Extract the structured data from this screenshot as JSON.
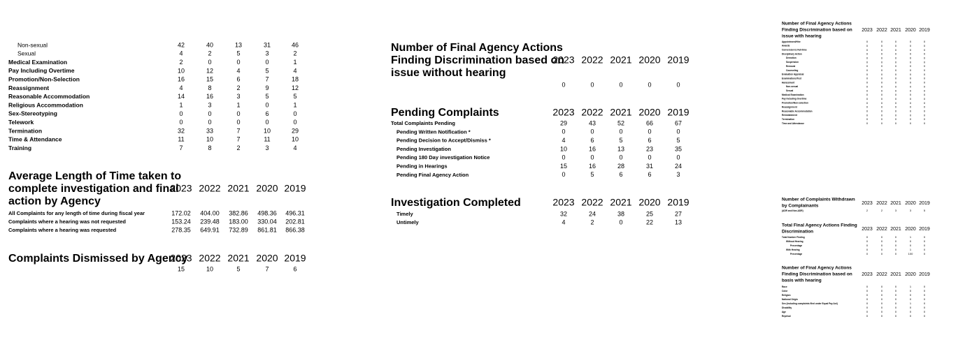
{
  "sections": [
    {
      "rows": [
        {
          "label": "Non-sexual",
          "values": [
            42,
            40,
            13,
            31,
            46
          ]
        },
        {
          "label": "Sexual",
          "values": [
            4,
            2,
            5,
            3,
            2
          ]
        },
        {
          "label": "Medical Examination",
          "values": [
            2,
            0,
            0,
            0,
            1
          ]
        },
        {
          "label": "Pay Including Overtime",
          "values": [
            10,
            12,
            4,
            5,
            4
          ]
        },
        {
          "label": "Promotion/Non-Selection",
          "values": [
            16,
            15,
            6,
            7,
            18
          ]
        },
        {
          "label": "Reassignment",
          "values": [
            4,
            8,
            2,
            9,
            12
          ]
        },
        {
          "label": "Reasonable Accommodation",
          "values": [
            14,
            16,
            3,
            5,
            5
          ]
        },
        {
          "label": "Religious Accommodation",
          "values": [
            1,
            3,
            1,
            0,
            1
          ]
        },
        {
          "label": "Sex-Stereotyping",
          "values": [
            0,
            0,
            0,
            6,
            0
          ]
        },
        {
          "label": "Telework",
          "values": [
            0,
            0,
            0,
            0,
            0
          ]
        },
        {
          "label": "Termination",
          "values": [
            32,
            33,
            7,
            10,
            29
          ]
        },
        {
          "label": "Time & Attendance",
          "values": [
            11,
            10,
            7,
            11,
            10
          ]
        },
        {
          "label": "Training",
          "values": [
            7,
            8,
            2,
            3,
            4
          ]
        }
      ]
    },
    {
      "title": [
        "Average Length of Time taken to",
        "complete investigation and final",
        "action by Agency"
      ],
      "years": [
        2023,
        2022,
        2021,
        2020,
        2019
      ],
      "rows": [
        {
          "label": "All Complaints for any length of time during fiscal year",
          "values": [
            "172.02",
            "404.00",
            "382.86",
            "498.36",
            "496.31"
          ]
        },
        {
          "label": "Complaints where a hearing was not requested",
          "values": [
            "153.24",
            "239.48",
            "183.00",
            "330.04",
            "202.81"
          ]
        },
        {
          "label": "Complaints where a hearing was requested",
          "values": [
            "278.35",
            "649.91",
            "732.89",
            "861.81",
            "866.38"
          ]
        }
      ]
    },
    {
      "title": [
        "Complaints Dismissed by Agency"
      ],
      "years": [
        2023,
        2022,
        2021,
        2020,
        2019
      ],
      "rows": [
        {
          "values": [
            15,
            10,
            5,
            7,
            6
          ]
        }
      ]
    },
    {
      "title": [
        "Number of Final Agency Actions",
        "Finding Discrimination based on",
        "issue without hearing"
      ],
      "years": [
        2023,
        2022,
        2021,
        2020,
        2019
      ],
      "rows": [
        {
          "values": [
            0,
            0,
            0,
            0,
            0
          ]
        }
      ]
    },
    {
      "title": [
        "Pending Complaints"
      ],
      "years": [
        2023,
        2022,
        2021,
        2020,
        2019
      ],
      "rows": [
        {
          "label": "Total Complaints Pending",
          "values": [
            29,
            43,
            52,
            66,
            67
          ]
        },
        {
          "label": "Pending Written Notification *",
          "values": [
            0,
            0,
            0,
            0,
            0
          ]
        },
        {
          "label": "Pending Decision to Accept/Dismiss *",
          "values": [
            4,
            6,
            5,
            6,
            5
          ]
        },
        {
          "label": "Pending Investigation",
          "values": [
            10,
            16,
            13,
            23,
            35
          ]
        },
        {
          "label": "Pending 180 Day investigation Notice",
          "values": [
            0,
            0,
            0,
            0,
            0
          ]
        },
        {
          "label": "Pending in Hearings",
          "values": [
            15,
            16,
            28,
            31,
            24
          ]
        },
        {
          "label": "Pending Final Agency Action",
          "values": [
            0,
            5,
            6,
            6,
            3
          ]
        }
      ]
    },
    {
      "title": [
        "Investigation Completed"
      ],
      "years": [
        2023,
        2022,
        2021,
        2020,
        2019
      ],
      "rows": [
        {
          "label": "Timely",
          "values": [
            32,
            24,
            38,
            25,
            27
          ]
        },
        {
          "label": "Untimely",
          "values": [
            4,
            2,
            0,
            22,
            13
          ]
        }
      ]
    },
    {
      "title": [
        "Number of Final Agency Actions",
        "Finding Discrimination based on",
        "issue with hearing"
      ],
      "years": [
        2023,
        2022,
        2021,
        2020,
        2019
      ],
      "rows": [
        {
          "label": "Appointment/Hire",
          "values": [
            0,
            0,
            0,
            0,
            0
          ]
        },
        {
          "label": "Awards",
          "values": [
            0,
            0,
            0,
            0,
            0
          ]
        },
        {
          "label": "Conversion to Full-time",
          "values": [
            0,
            0,
            0,
            0,
            0
          ]
        },
        {
          "label": "Disciplinary Action",
          "values": [
            0,
            0,
            0,
            0,
            0
          ]
        },
        {
          "label": "Demotion",
          "values": [
            0,
            0,
            0,
            0,
            0
          ]
        },
        {
          "label": "Suspension",
          "values": [
            0,
            0,
            0,
            0,
            0
          ]
        },
        {
          "label": "Removal",
          "values": [
            0,
            0,
            0,
            0,
            0
          ]
        },
        {
          "label": "Counseling",
          "values": [
            0,
            0,
            0,
            0,
            0
          ]
        },
        {
          "label": "Evaluation Appraisal",
          "values": [
            0,
            0,
            0,
            0,
            0
          ]
        },
        {
          "label": "Examinations/Test",
          "values": [
            0,
            0,
            0,
            0,
            0
          ]
        },
        {
          "label": "Harassment",
          "values": [
            0,
            0,
            0,
            0,
            0
          ]
        },
        {
          "label": "Non-sexual",
          "values": [
            0,
            0,
            0,
            0,
            0
          ]
        },
        {
          "label": "Sexual",
          "values": [
            0,
            0,
            0,
            0,
            0
          ]
        },
        {
          "label": "Medical Examination",
          "values": [
            0,
            0,
            0,
            0,
            0
          ]
        },
        {
          "label": "Pay Including Overtime",
          "values": [
            0,
            0,
            0,
            0,
            0
          ]
        },
        {
          "label": "Promotion/Non-selection",
          "values": [
            0,
            0,
            0,
            0,
            0
          ]
        },
        {
          "label": "Reassignment",
          "values": [
            0,
            0,
            0,
            0,
            0
          ]
        },
        {
          "label": "Reasonable Accommodation",
          "values": [
            0,
            0,
            0,
            0,
            0
          ]
        },
        {
          "label": "Reinstatement",
          "values": [
            0,
            0,
            0,
            0,
            0
          ]
        },
        {
          "label": "Termination",
          "values": [
            0,
            0,
            0,
            0,
            0
          ]
        },
        {
          "label": "Time and Attendance",
          "values": [
            0,
            0,
            0,
            0,
            0
          ]
        }
      ]
    },
    {
      "title": [
        "Number of Complaints Withdrawn",
        "by Complainants"
      ],
      "years": [
        2023,
        2022,
        2021,
        2020,
        2019
      ],
      "rows": [
        {
          "label": "(ADR and Non-ADR)",
          "values": [
            2,
            2,
            3,
            3,
            5
          ]
        }
      ]
    },
    {
      "title": [
        "Total Final Agency Actions Finding",
        "Discrimination"
      ],
      "years": [
        2023,
        2022,
        2021,
        2020,
        2019
      ],
      "rows": [
        {
          "label": "Total Number Finding",
          "values": [
            0,
            0,
            0,
            1,
            0
          ]
        },
        {
          "label": "Without Hearing",
          "values": [
            0,
            0,
            0,
            0,
            0
          ]
        },
        {
          "label": "Percentage",
          "values": [
            0,
            0,
            0,
            0,
            0
          ]
        },
        {
          "label": "With Hearing",
          "values": [
            0,
            0,
            0,
            1,
            0
          ]
        },
        {
          "label": "Percentage",
          "values": [
            0,
            0,
            0,
            100,
            0
          ]
        }
      ]
    },
    {
      "title": [
        "Number of Final Agency Actions",
        "Finding Discrimination based on",
        "basis with hearing"
      ],
      "years": [
        2023,
        2022,
        2021,
        2020,
        2019
      ],
      "rows": [
        {
          "label": "Race",
          "values": [
            0,
            0,
            0,
            1,
            0
          ]
        },
        {
          "label": "Color",
          "values": [
            0,
            0,
            0,
            0,
            0
          ]
        },
        {
          "label": "Religion",
          "values": [
            0,
            0,
            0,
            0,
            0
          ]
        },
        {
          "label": "National Origin",
          "values": [
            0,
            0,
            0,
            0,
            0
          ]
        },
        {
          "label": "Sex (including complaints filed under Equal Pay Act)",
          "values": [
            0,
            0,
            0,
            1,
            0
          ]
        },
        {
          "label": "Disability",
          "values": [
            0,
            0,
            0,
            0,
            0
          ]
        },
        {
          "label": "Age",
          "values": [
            0,
            0,
            0,
            0,
            0
          ]
        },
        {
          "label": "Reprisal",
          "values": [
            0,
            0,
            0,
            0,
            0
          ]
        }
      ]
    }
  ]
}
